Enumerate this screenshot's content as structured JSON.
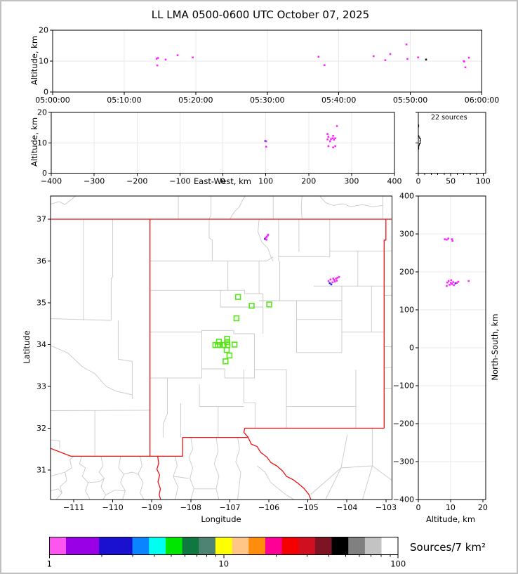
{
  "title": "LL LMA 0500-0600 UTC October 07, 2025",
  "labels": {
    "altitude_km": "Altitude, km",
    "east_west": "East-West, km",
    "latitude": "Latitude",
    "longitude": "Longitude",
    "north_south": "North-South, km",
    "altitude_km_bottom": "Altitude, km",
    "sources_annotation": "22 sources",
    "colorbar_label": "Sources/7 km²"
  },
  "colors": {
    "source_magenta": "#fa28ff",
    "source_blue": "#2a2acd",
    "source_black": "#151515",
    "station_green": "#55e616",
    "state_border": "#ec1214",
    "county_line": "#c9c9c9",
    "grid": "#e8e8e8"
  },
  "chart_data": {
    "panels": [
      {
        "id": "time_height",
        "type": "scatter",
        "xlim_seconds": [
          0,
          3600
        ],
        "x_tick_labels": [
          "05:00:00",
          "05:10:00",
          "05:20:00",
          "05:30:00",
          "05:40:00",
          "05:50:00",
          "06:00:00"
        ],
        "x_tick_values": [
          0,
          600,
          1200,
          1800,
          2400,
          3000,
          3600
        ],
        "ylim": [
          0,
          20
        ],
        "y_tick_values": [
          0,
          10,
          20
        ],
        "y_tick_labels": [
          "0",
          "10",
          "20"
        ],
        "ylabel": "Altitude, km",
        "grid_y": [
          10
        ],
        "points": [
          [
            872,
            10.8,
            "m"
          ],
          [
            878,
            8.6,
            "m"
          ],
          [
            884,
            11.0,
            "m"
          ],
          [
            948,
            10.5,
            "m"
          ],
          [
            1048,
            11.9,
            "m"
          ],
          [
            1175,
            11.2,
            "m"
          ],
          [
            2230,
            11.4,
            "m"
          ],
          [
            2280,
            8.7,
            "m"
          ],
          [
            2692,
            11.6,
            "m"
          ],
          [
            2790,
            10.3,
            "m"
          ],
          [
            2832,
            12.3,
            "m"
          ],
          [
            2968,
            15.4,
            "m"
          ],
          [
            2976,
            10.7,
            "m"
          ],
          [
            3065,
            11.2,
            "m"
          ],
          [
            3132,
            10.5,
            "k"
          ],
          [
            3448,
            10.0,
            "m"
          ],
          [
            3452,
            9.9,
            "m"
          ],
          [
            3462,
            8.0,
            "m"
          ],
          [
            3492,
            11.1,
            "m"
          ]
        ]
      },
      {
        "id": "ew_height",
        "type": "scatter",
        "xlim": [
          -400,
          400
        ],
        "x_tick_values": [
          -400,
          -300,
          -200,
          -100,
          0,
          100,
          200,
          300,
          400
        ],
        "x_tick_labels": [
          "−400",
          "−300",
          "−200",
          "−100",
          "0",
          "100",
          "200",
          "300",
          "400"
        ],
        "xlabel": "East-West, km",
        "ylim": [
          0,
          20
        ],
        "y_tick_values": [
          0,
          10,
          20
        ],
        "y_tick_labels": [
          "0",
          "10",
          "20"
        ],
        "ylabel": "Altitude, km",
        "grid_y": [
          10
        ],
        "points": [
          [
            99,
            10.6,
            "b"
          ],
          [
            101,
            10.5,
            "m"
          ],
          [
            101,
            8.7,
            "m"
          ],
          [
            244,
            12.9,
            "m"
          ],
          [
            246,
            12.0,
            "m"
          ],
          [
            244,
            11.1,
            "m"
          ],
          [
            250,
            10.5,
            "m"
          ],
          [
            252,
            11.2,
            "m"
          ],
          [
            256,
            11.5,
            "m"
          ],
          [
            259,
            11.0,
            "m"
          ],
          [
            262,
            11.5,
            "m"
          ],
          [
            257,
            12.3,
            "m"
          ],
          [
            266,
            15.5,
            "m"
          ],
          [
            257,
            8.5,
            "m"
          ],
          [
            246,
            8.9,
            "m"
          ],
          [
            262,
            8.9,
            "m"
          ]
        ]
      },
      {
        "id": "alt_histogram",
        "type": "line",
        "annotation": "22 sources",
        "xlim": [
          0,
          104
        ],
        "x_tick_values": [
          0,
          50,
          100
        ],
        "x_tick_labels": [
          "0",
          "50",
          "100"
        ],
        "x_minor_ticks": [
          10,
          20,
          30,
          40,
          60,
          70,
          80,
          90
        ],
        "ylim": [
          0,
          20
        ],
        "y_tick_values": [
          0,
          10,
          20
        ],
        "y_tick_labels": [
          "0",
          "10",
          "20"
        ],
        "profile_polylines": [
          [
            [
              0,
              12.4
            ],
            [
              0.8,
              12.4
            ],
            [
              0.8,
              11.9
            ],
            [
              2.0,
              11.9
            ],
            [
              2.0,
              11.4
            ],
            [
              3.6,
              11.4
            ],
            [
              3.6,
              10.8
            ],
            [
              2.6,
              10.8
            ],
            [
              2.6,
              10.3
            ],
            [
              3.0,
              10.3
            ],
            [
              3.0,
              9.7
            ],
            [
              1.6,
              9.7
            ],
            [
              1.6,
              9.2
            ],
            [
              0.8,
              9.2
            ],
            [
              0.8,
              8.6
            ],
            [
              0,
              8.6
            ]
          ],
          [
            [
              0,
              8.4
            ],
            [
              0.7,
              8.4
            ],
            [
              0.7,
              7.9
            ],
            [
              0,
              7.9
            ]
          ],
          [
            [
              0,
              15.9
            ],
            [
              0.7,
              15.9
            ],
            [
              0.7,
              15.2
            ],
            [
              0,
              15.2
            ]
          ]
        ]
      },
      {
        "id": "plan_map",
        "type": "scatter",
        "lon_lim": [
          -111.594,
          -102.848
        ],
        "lat_lim": [
          30.294,
          37.555
        ],
        "x_tick_values": [
          -111,
          -110,
          -109,
          -108,
          -107,
          -106,
          -105,
          -104,
          -103
        ],
        "x_tick_labels": [
          "−111",
          "−110",
          "−109",
          "−108",
          "−107",
          "−106",
          "−105",
          "−104",
          "−103"
        ],
        "y_tick_values": [
          31,
          32,
          33,
          34,
          35,
          36,
          37
        ],
        "y_tick_labels": [
          "31",
          "32",
          "33",
          "34",
          "35",
          "36",
          "37"
        ],
        "xlabel": "Longitude",
        "ylabel": "Latitude",
        "stations_lon_lat": [
          [
            -106.79,
            35.14
          ],
          [
            -106.44,
            34.93
          ],
          [
            -105.99,
            34.96
          ],
          [
            -106.83,
            34.63
          ],
          [
            -107.07,
            34.14
          ],
          [
            -107.28,
            34.07
          ],
          [
            -107.07,
            34.06
          ],
          [
            -107.37,
            33.99
          ],
          [
            -107.31,
            33.99
          ],
          [
            -107.25,
            33.99
          ],
          [
            -107.16,
            33.99
          ],
          [
            -107.06,
            33.99
          ],
          [
            -106.88,
            34.0
          ],
          [
            -107.08,
            33.87
          ],
          [
            -107.01,
            33.74
          ],
          [
            -107.11,
            33.6
          ]
        ],
        "points": [
          [
            -106.1,
            36.53,
            "b"
          ],
          [
            -106.08,
            36.56,
            "m"
          ],
          [
            -106.05,
            36.58,
            "m"
          ],
          [
            -106.03,
            36.61,
            "m"
          ],
          [
            -106.06,
            36.51,
            "m"
          ],
          [
            -106.02,
            36.63,
            "m"
          ],
          [
            -104.44,
            35.47,
            "b"
          ],
          [
            -104.4,
            35.44,
            "b"
          ],
          [
            -104.37,
            35.49,
            "m"
          ],
          [
            -104.33,
            35.55,
            "m"
          ],
          [
            -104.28,
            35.58,
            "m"
          ],
          [
            -104.24,
            35.6,
            "m"
          ],
          [
            -104.2,
            35.62,
            "m"
          ],
          [
            -104.31,
            35.51,
            "m"
          ],
          [
            -104.26,
            35.53,
            "m"
          ],
          [
            -104.35,
            35.58,
            "m"
          ],
          [
            -104.47,
            35.52,
            "m"
          ],
          [
            -104.42,
            35.56,
            "m"
          ]
        ]
      },
      {
        "id": "ns_height",
        "type": "scatter",
        "xlim": [
          0,
          20.9
        ],
        "x_tick_values": [
          0,
          10,
          20
        ],
        "x_tick_labels": [
          "0",
          "10",
          "20"
        ],
        "xlabel": "Altitude, km",
        "ylim": [
          -400,
          400
        ],
        "y_tick_values": [
          400,
          300,
          200,
          100,
          0,
          -100,
          -200,
          -300,
          -400
        ],
        "y_tick_labels": [
          "400",
          "300",
          "200",
          "100",
          "0",
          "−100",
          "−200",
          "−300",
          "−400"
        ],
        "ylabel": "North-South, km",
        "grid_x": [
          10
        ],
        "points": [
          [
            8.2,
            286,
            "m"
          ],
          [
            9.3,
            288,
            "m"
          ],
          [
            10.4,
            286,
            "m"
          ],
          [
            10.6,
            282,
            "m"
          ],
          [
            8.8,
            285,
            "m"
          ],
          [
            10.2,
            178,
            "m"
          ],
          [
            9.0,
            172,
            "m"
          ],
          [
            10.8,
            173,
            "m"
          ],
          [
            11.5,
            170,
            "b"
          ],
          [
            10.4,
            168,
            "m"
          ],
          [
            9.7,
            166,
            "m"
          ],
          [
            11.9,
            171,
            "m"
          ],
          [
            12.4,
            174,
            "m"
          ],
          [
            8.8,
            163,
            "m"
          ],
          [
            11.0,
            165,
            "m"
          ],
          [
            10.1,
            171,
            "m"
          ],
          [
            9.4,
            176,
            "m"
          ],
          [
            15.6,
            176,
            "m"
          ]
        ]
      }
    ],
    "colorbar": {
      "type": "colorbar",
      "scale": "log",
      "domain": [
        1,
        100
      ],
      "tick_values": [
        1,
        10,
        100
      ],
      "tick_labels": [
        "1",
        "10",
        "100"
      ],
      "label": "Sources/7 km²",
      "segment_colors": [
        "#ff55f0",
        "#9900e6",
        "#9900e6",
        "#1a10d0",
        "#1a10d0",
        "#0a85ff",
        "#00fff0",
        "#00e600",
        "#0f7840",
        "#4e8272",
        "#ffff00",
        "#ffc685",
        "#ff8c0a",
        "#ff0096",
        "#f50000",
        "#d01020",
        "#7d1423",
        "#000000",
        "#808080",
        "#c3c3c3",
        "#ffffff"
      ]
    }
  }
}
